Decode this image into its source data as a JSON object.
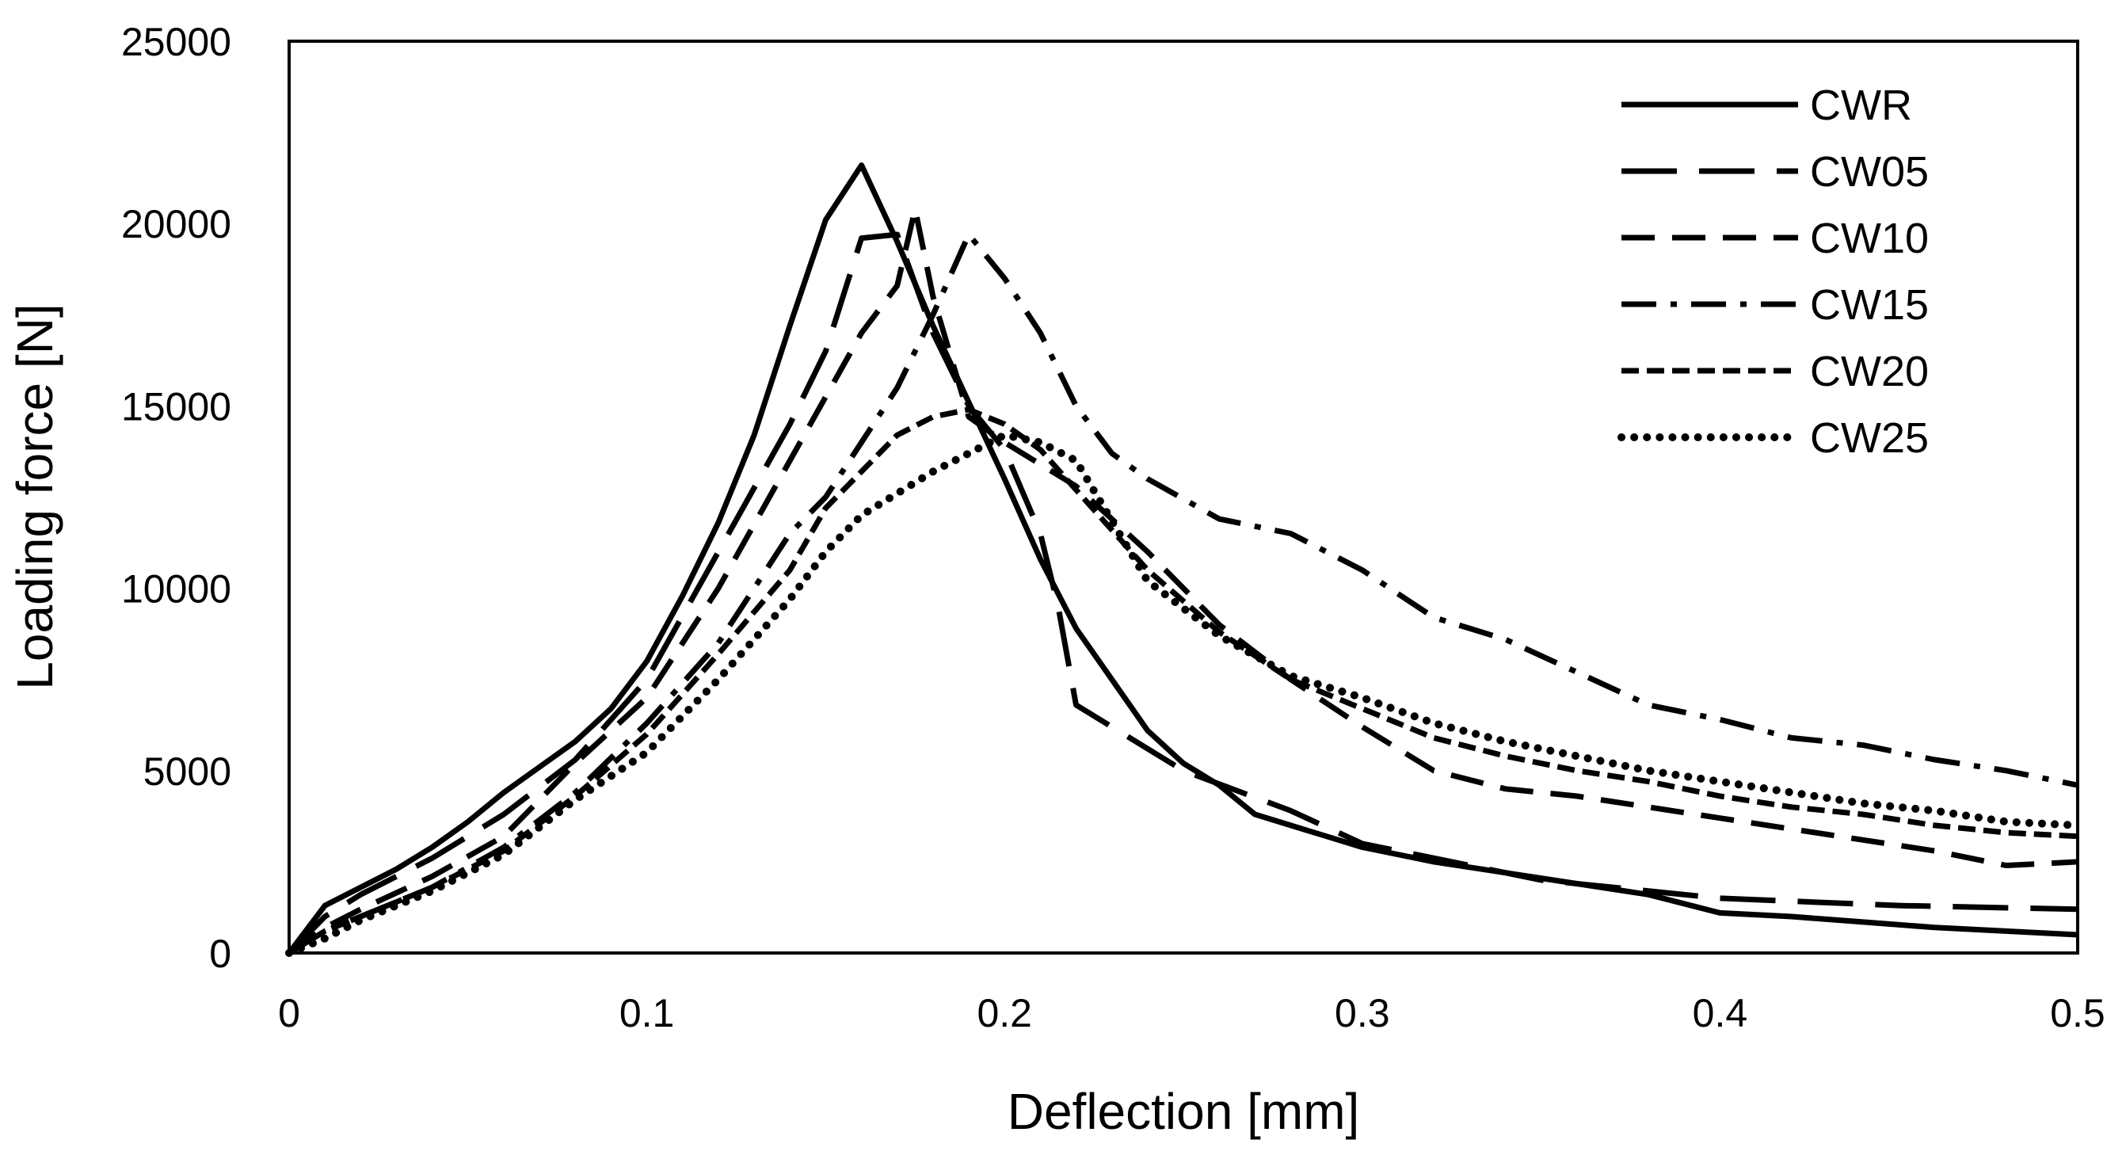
{
  "chart_data": {
    "type": "line",
    "title": "",
    "xlabel": "Deflection [mm]",
    "ylabel": "Loading force [N]",
    "xlim": [
      0,
      0.5
    ],
    "ylim": [
      0,
      25000
    ],
    "xticks": [
      0,
      0.1,
      0.2,
      0.3,
      0.4,
      0.5
    ],
    "xtick_labels": [
      "0",
      "0.1",
      "0.2",
      "0.3",
      "0.4",
      "0.5"
    ],
    "yticks": [
      0,
      5000,
      10000,
      15000,
      20000,
      25000
    ],
    "ytick_labels": [
      "0",
      "5000",
      "10000",
      "15000",
      "20000",
      "25000"
    ],
    "grid": false,
    "legend_position": "top-right",
    "series": [
      {
        "name": "CWR",
        "style": "solid",
        "x": [
          0,
          0.01,
          0.02,
          0.03,
          0.04,
          0.05,
          0.06,
          0.07,
          0.08,
          0.09,
          0.1,
          0.11,
          0.12,
          0.13,
          0.14,
          0.15,
          0.16,
          0.17,
          0.18,
          0.19,
          0.2,
          0.21,
          0.22,
          0.23,
          0.24,
          0.25,
          0.26,
          0.27,
          0.28,
          0.29,
          0.3,
          0.32,
          0.34,
          0.36,
          0.38,
          0.4,
          0.42,
          0.44,
          0.46,
          0.48,
          0.5
        ],
        "y": [
          0,
          1300,
          1800,
          2300,
          2900,
          3600,
          4400,
          5100,
          5800,
          6700,
          8000,
          9800,
          11800,
          14200,
          17200,
          20100,
          21600,
          19500,
          17200,
          15100,
          13000,
          10800,
          8900,
          7500,
          6100,
          5200,
          4600,
          3800,
          3500,
          3200,
          2900,
          2500,
          2200,
          1900,
          1600,
          1100,
          1000,
          850,
          700,
          600,
          500
        ]
      },
      {
        "name": "CW05",
        "style": "long-dash",
        "x": [
          0,
          0.01,
          0.02,
          0.04,
          0.06,
          0.08,
          0.1,
          0.12,
          0.14,
          0.15,
          0.16,
          0.17,
          0.18,
          0.19,
          0.2,
          0.21,
          0.215,
          0.22,
          0.25,
          0.28,
          0.3,
          0.35,
          0.4,
          0.45,
          0.5
        ],
        "y": [
          0,
          1000,
          1600,
          2600,
          3800,
          5300,
          7500,
          11000,
          14500,
          16500,
          19600,
          19700,
          17000,
          15000,
          13800,
          11500,
          9500,
          6800,
          5000,
          3900,
          3000,
          2000,
          1500,
          1300,
          1200
        ]
      },
      {
        "name": "CW10",
        "style": "dash",
        "x": [
          0,
          0.01,
          0.02,
          0.04,
          0.06,
          0.08,
          0.1,
          0.12,
          0.14,
          0.16,
          0.17,
          0.175,
          0.18,
          0.19,
          0.2,
          0.22,
          0.24,
          0.26,
          0.28,
          0.3,
          0.32,
          0.34,
          0.36,
          0.38,
          0.4,
          0.42,
          0.44,
          0.46,
          0.48,
          0.5
        ],
        "y": [
          0,
          700,
          1200,
          2100,
          3200,
          5200,
          7000,
          10000,
          13500,
          17000,
          18300,
          20400,
          18000,
          14700,
          14000,
          12800,
          11000,
          9000,
          7500,
          6200,
          5000,
          4500,
          4300,
          4000,
          3700,
          3400,
          3100,
          2800,
          2400,
          2500
        ]
      },
      {
        "name": "CW15",
        "style": "dash-dot",
        "x": [
          0,
          0.01,
          0.02,
          0.04,
          0.06,
          0.08,
          0.1,
          0.12,
          0.14,
          0.15,
          0.16,
          0.17,
          0.18,
          0.19,
          0.2,
          0.21,
          0.22,
          0.23,
          0.24,
          0.26,
          0.28,
          0.3,
          0.32,
          0.34,
          0.36,
          0.38,
          0.4,
          0.42,
          0.44,
          0.46,
          0.48,
          0.5
        ],
        "y": [
          0,
          600,
          1000,
          1800,
          2900,
          4400,
          6300,
          8500,
          11500,
          12500,
          14000,
          15500,
          17500,
          19700,
          18500,
          17000,
          15000,
          13700,
          13000,
          11900,
          11500,
          10500,
          9200,
          8600,
          7700,
          6800,
          6400,
          5900,
          5700,
          5300,
          5000,
          4600
        ]
      },
      {
        "name": "CW20",
        "style": "short-dash",
        "x": [
          0,
          0.01,
          0.02,
          0.04,
          0.06,
          0.08,
          0.1,
          0.12,
          0.14,
          0.15,
          0.16,
          0.17,
          0.18,
          0.19,
          0.2,
          0.21,
          0.22,
          0.24,
          0.26,
          0.28,
          0.3,
          0.32,
          0.34,
          0.36,
          0.38,
          0.4,
          0.42,
          0.44,
          0.46,
          0.48,
          0.5
        ],
        "y": [
          0,
          600,
          1000,
          1800,
          2800,
          4300,
          6000,
          8200,
          10500,
          12200,
          13200,
          14200,
          14700,
          14900,
          14500,
          13800,
          12700,
          10500,
          8800,
          7500,
          6700,
          5900,
          5400,
          5000,
          4700,
          4300,
          4000,
          3800,
          3500,
          3300,
          3200
        ]
      },
      {
        "name": "CW25",
        "style": "dotted",
        "x": [
          0,
          0.01,
          0.02,
          0.04,
          0.06,
          0.08,
          0.1,
          0.12,
          0.14,
          0.15,
          0.16,
          0.17,
          0.18,
          0.19,
          0.2,
          0.21,
          0.22,
          0.24,
          0.26,
          0.28,
          0.3,
          0.32,
          0.34,
          0.36,
          0.38,
          0.4,
          0.42,
          0.44,
          0.46,
          0.48,
          0.5
        ],
        "y": [
          0,
          400,
          900,
          1700,
          2700,
          4200,
          5500,
          7500,
          9700,
          11000,
          12000,
          12600,
          13200,
          13700,
          14200,
          14000,
          13500,
          10200,
          8700,
          7600,
          7000,
          6300,
          5800,
          5400,
          5000,
          4700,
          4400,
          4100,
          3900,
          3600,
          3500
        ]
      }
    ]
  }
}
